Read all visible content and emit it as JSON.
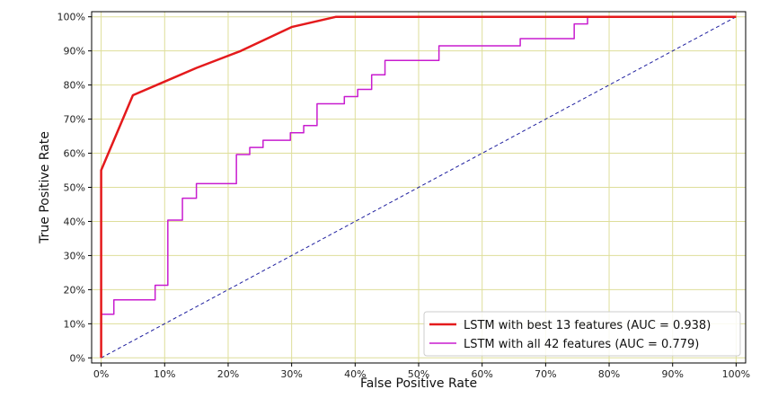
{
  "chart_data": {
    "type": "line",
    "title": "",
    "xlabel": "False Positive Rate",
    "ylabel": "True Positive Rate",
    "xlim": [
      0,
      1
    ],
    "ylim": [
      0,
      1
    ],
    "grid": true,
    "grid_color": "#dede9a",
    "legend_position": "lower-right",
    "x_tick_labels": [
      "0%",
      "10%",
      "20%",
      "30%",
      "40%",
      "50%",
      "60%",
      "70%",
      "80%",
      "90%",
      "100%"
    ],
    "y_tick_labels": [
      "0%",
      "10%",
      "20%",
      "30%",
      "40%",
      "50%",
      "60%",
      "70%",
      "80%",
      "90%",
      "100%"
    ],
    "series": [
      {
        "name": "LSTM with best 13 features (AUC = 0.938)",
        "color": "#e41a1c",
        "style": "solid",
        "x": [
          0,
          0,
          0,
          0.05,
          0.1,
          0.15,
          0.22,
          0.3,
          0.37,
          1.0
        ],
        "y": [
          0,
          0.55,
          0.55,
          0.77,
          0.81,
          0.85,
          0.9,
          0.97,
          1.0,
          1.0
        ]
      },
      {
        "name": "LSTM with all 42 features (AUC = 0.779)",
        "color": "#c81ccf",
        "style": "step",
        "x": [
          0,
          0,
          0.02,
          0.02,
          0.085,
          0.085,
          0.105,
          0.105,
          0.128,
          0.128,
          0.15,
          0.15,
          0.213,
          0.213,
          0.234,
          0.234,
          0.255,
          0.255,
          0.298,
          0.298,
          0.319,
          0.319,
          0.34,
          0.34,
          0.383,
          0.383,
          0.404,
          0.404,
          0.426,
          0.426,
          0.447,
          0.447,
          0.532,
          0.532,
          0.66,
          0.66,
          0.745,
          0.745,
          0.766,
          0.766,
          1.0
        ],
        "y": [
          0,
          0.128,
          0.128,
          0.17,
          0.17,
          0.213,
          0.213,
          0.404,
          0.404,
          0.468,
          0.468,
          0.511,
          0.511,
          0.596,
          0.596,
          0.617,
          0.617,
          0.638,
          0.638,
          0.66,
          0.66,
          0.681,
          0.681,
          0.745,
          0.745,
          0.766,
          0.766,
          0.787,
          0.787,
          0.83,
          0.83,
          0.872,
          0.872,
          0.915,
          0.915,
          0.936,
          0.936,
          0.979,
          0.979,
          1.0,
          1.0
        ]
      },
      {
        "name": "",
        "color": "#1f1f9f",
        "style": "dashed",
        "x": [
          0,
          1
        ],
        "y": [
          0,
          1
        ]
      }
    ]
  }
}
